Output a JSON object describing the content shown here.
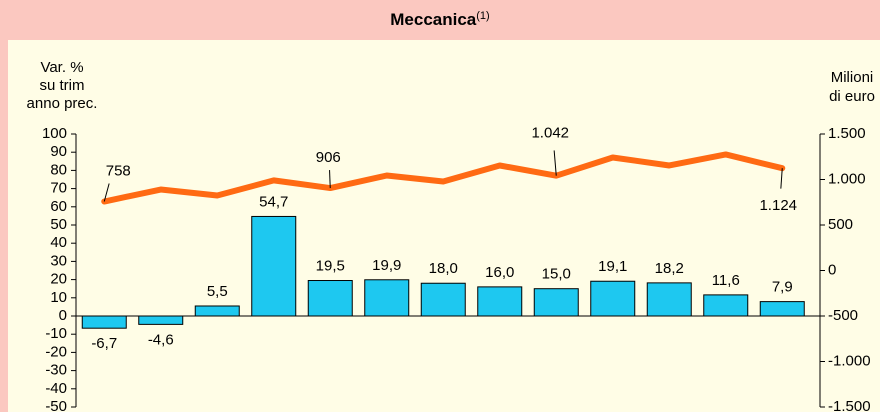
{
  "chart_data": {
    "type": "bar_line",
    "title": "Meccanica",
    "title_note": "(1)",
    "y_label": [
      "Var. %",
      "su trim",
      "anno prec."
    ],
    "y2_label": [
      "Milioni",
      "di euro"
    ],
    "categories": [
      null,
      null,
      null,
      null,
      null,
      null,
      null,
      null,
      null,
      null,
      null,
      null,
      null
    ],
    "ylim": [
      -50,
      100
    ],
    "yticks": [
      -50,
      -40,
      -30,
      -20,
      -10,
      0,
      10,
      20,
      30,
      40,
      50,
      60,
      70,
      80,
      90,
      100
    ],
    "y2lim": [
      -1500,
      1500
    ],
    "y2ticks": [
      {
        "value": -1500,
        "label": "-1.500"
      },
      {
        "value": -1000,
        "label": "-1.000"
      },
      -500,
      0,
      500,
      {
        "value": 1000,
        "label": "1.000"
      },
      {
        "value": 1500,
        "label": "1.500"
      }
    ],
    "series": [
      {
        "type": "bar",
        "color": "#1ec8f0",
        "values": [
          -6.7,
          -4.6,
          5.5,
          54.7,
          19.5,
          19.9,
          18.0,
          16.0,
          15.0,
          19.1,
          18.2,
          11.6,
          7.9
        ],
        "value_labels": [
          "-6,7",
          "-4,6",
          "5,5",
          "54,7",
          "19,5",
          "19,9",
          "18,0",
          "16,0",
          "15,0",
          "19,1",
          "18,2",
          "11,6",
          "7,9"
        ]
      },
      {
        "type": "line",
        "axis": "y2",
        "color": "#ff6a13",
        "values": [
          758,
          890,
          824,
          990,
          906,
          1044,
          978,
          1154,
          1042,
          1242,
          1154,
          1275,
          1124
        ],
        "value_labels": [
          "758",
          null,
          null,
          null,
          "906",
          null,
          null,
          null,
          "1.042",
          null,
          null,
          null,
          "1.124"
        ]
      }
    ]
  }
}
